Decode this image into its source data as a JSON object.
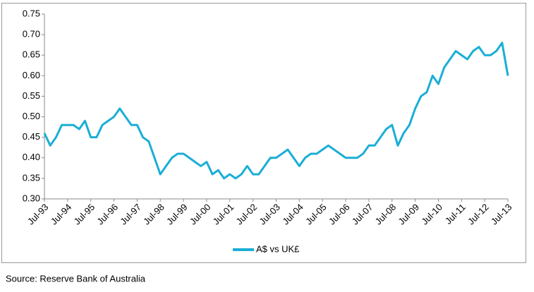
{
  "chart_data": {
    "type": "line",
    "categories": [
      "Jul-93",
      null,
      null,
      null,
      "Jul-94",
      null,
      null,
      null,
      "Jul-95",
      null,
      null,
      null,
      "Jul-96",
      null,
      null,
      null,
      "Jul-97",
      null,
      null,
      null,
      "Jul-98",
      null,
      null,
      null,
      "Jul-99",
      null,
      null,
      null,
      "Jul-00",
      null,
      null,
      null,
      "Jul-01",
      null,
      null,
      null,
      "Jul-02",
      null,
      null,
      null,
      "Jul-03",
      null,
      null,
      null,
      "Jul-04",
      null,
      null,
      null,
      "Jul-05",
      null,
      null,
      null,
      "Jul-06",
      null,
      null,
      null,
      "Jul-07",
      null,
      null,
      null,
      "Jul-08",
      null,
      null,
      null,
      "Jul-09",
      null,
      null,
      null,
      "Jul-10",
      null,
      null,
      null,
      "Jul-11",
      null,
      null,
      null,
      "Jul-12",
      null,
      null,
      null,
      "Jul-13"
    ],
    "series": [
      {
        "name": "A$ vs UK£",
        "color": "#1aaed6",
        "values": [
          0.46,
          0.43,
          0.45,
          0.48,
          0.48,
          0.48,
          0.47,
          0.49,
          0.45,
          0.45,
          0.48,
          0.49,
          0.5,
          0.52,
          0.5,
          0.48,
          0.48,
          0.45,
          0.44,
          0.4,
          0.36,
          0.38,
          0.4,
          0.41,
          0.41,
          0.4,
          0.39,
          0.38,
          0.39,
          0.36,
          0.37,
          0.35,
          0.36,
          0.35,
          0.36,
          0.38,
          0.36,
          0.36,
          0.38,
          0.4,
          0.4,
          0.41,
          0.42,
          0.4,
          0.38,
          0.4,
          0.41,
          0.41,
          0.42,
          0.43,
          0.42,
          0.41,
          0.4,
          0.4,
          0.4,
          0.41,
          0.43,
          0.43,
          0.45,
          0.47,
          0.48,
          0.43,
          0.46,
          0.48,
          0.52,
          0.55,
          0.56,
          0.6,
          0.58,
          0.62,
          0.64,
          0.66,
          0.65,
          0.64,
          0.66,
          0.67,
          0.65,
          0.65,
          0.66,
          0.68,
          0.6
        ]
      }
    ],
    "ylim": [
      0.3,
      0.75
    ],
    "yticks": [
      {
        "value": 0.3,
        "label": "0.30"
      },
      {
        "value": 0.35,
        "label": "0.35"
      },
      {
        "value": 0.4,
        "label": "0.40"
      },
      {
        "value": 0.45,
        "label": "0.45"
      },
      {
        "value": 0.5,
        "label": "0.50"
      },
      {
        "value": 0.55,
        "label": "0.55"
      },
      {
        "value": 0.6,
        "label": "0.60"
      },
      {
        "value": 0.65,
        "label": "0.65"
      },
      {
        "value": 0.7,
        "label": "0.70"
      },
      {
        "value": 0.75,
        "label": "0.75"
      }
    ],
    "grid": false,
    "legend": "bottom",
    "source": "Source: Reserve Bank of Australia"
  }
}
